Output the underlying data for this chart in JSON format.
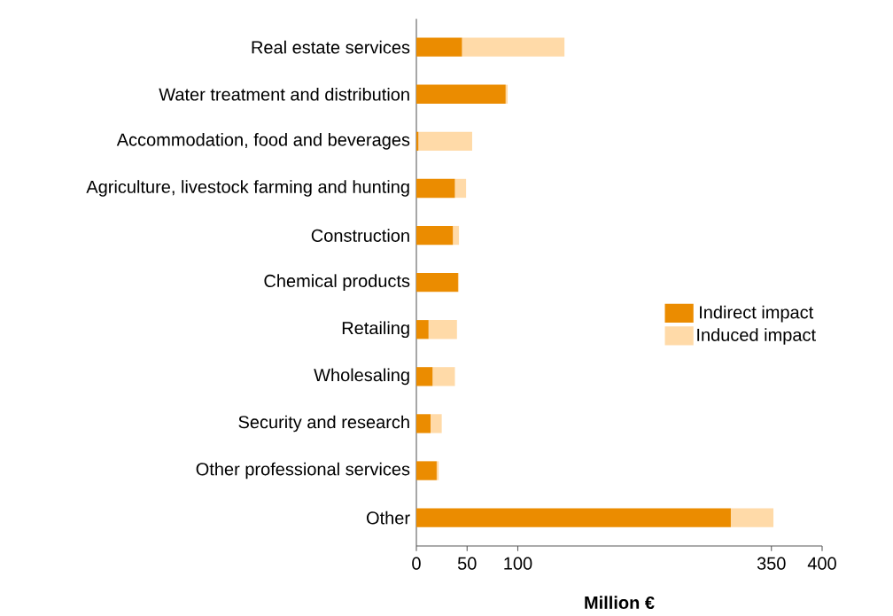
{
  "chart_data": {
    "type": "bar",
    "orientation": "horizontal",
    "stacked": true,
    "xlabel": "Million €",
    "categories": [
      "Real estate services",
      "Water treatment and distribution",
      "Accommodation, food and beverages",
      "Agriculture, livestock farming and hunting",
      "Construction",
      "Chemical products",
      "Retailing",
      "Wholesaling",
      "Security and research",
      "Other professional services",
      "Other"
    ],
    "series": [
      {
        "name": "Indirect impact",
        "color": "#eb8c00",
        "values": [
          45,
          88,
          2,
          38,
          36,
          41,
          12,
          16,
          14,
          20,
          310
        ]
      },
      {
        "name": "Induced impact",
        "color": "#ffdaa8",
        "values": [
          101,
          2,
          53,
          11,
          6,
          1,
          28,
          22,
          11,
          2,
          42
        ]
      }
    ],
    "xlim": [
      0,
      400
    ],
    "xticks": [
      0,
      50,
      100,
      350,
      400
    ],
    "legend": "right",
    "grid": false
  }
}
